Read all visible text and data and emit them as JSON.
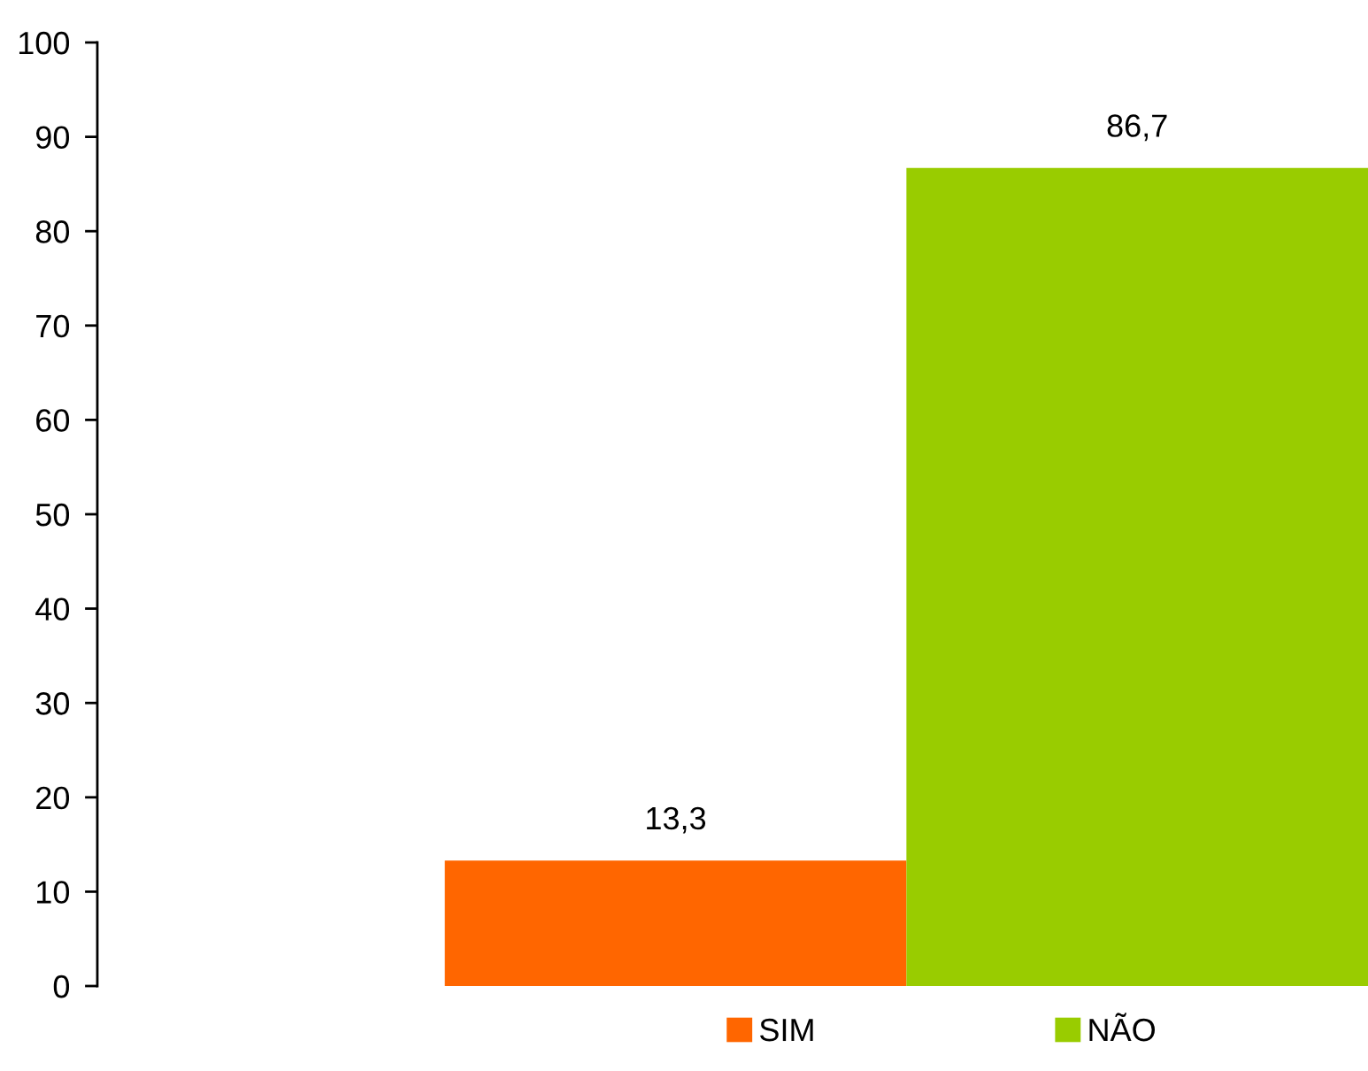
{
  "chart_data": {
    "type": "bar",
    "categories": [
      null
    ],
    "series": [
      {
        "name": "SIM",
        "color": "#ff6600",
        "values": [
          13.3
        ],
        "value_labels": [
          "13,3"
        ]
      },
      {
        "name": "NÃO",
        "color": "#99cc00",
        "values": [
          86.7
        ],
        "value_labels": [
          "86,7"
        ]
      }
    ],
    "ylim": [
      0,
      100
    ],
    "yticks": [
      0,
      10,
      20,
      30,
      40,
      50,
      60,
      70,
      80,
      90,
      100
    ],
    "grid": false,
    "legend": "bottom"
  }
}
